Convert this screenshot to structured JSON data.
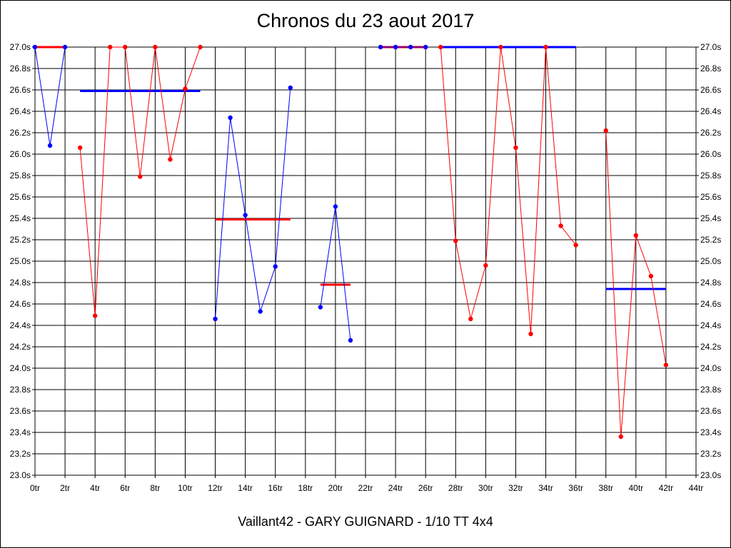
{
  "chart_data": {
    "type": "line",
    "title": "Chronos du 23 aout 2017",
    "subtitle": "Vaillant42 - GARY GUIGNARD - 1/10 TT 4x4",
    "x_ticks": [
      "0tr",
      "2tr",
      "4tr",
      "6tr",
      "8tr",
      "10tr",
      "12tr",
      "14tr",
      "16tr",
      "18tr",
      "20tr",
      "22tr",
      "24tr",
      "26tr",
      "28tr",
      "30tr",
      "32tr",
      "34tr",
      "36tr",
      "38tr",
      "40tr",
      "42tr",
      "44tr"
    ],
    "y_ticks": [
      "23.0s",
      "23.2s",
      "23.4s",
      "23.6s",
      "23.8s",
      "24.0s",
      "24.2s",
      "24.4s",
      "24.6s",
      "24.8s",
      "25.0s",
      "25.2s",
      "25.4s",
      "25.6s",
      "25.8s",
      "26.0s",
      "26.2s",
      "26.4s",
      "26.6s",
      "26.8s",
      "27.0s"
    ],
    "xlim": [
      0,
      44
    ],
    "ylim": [
      23.0,
      27.0
    ],
    "grid": true,
    "colors": {
      "blue": "#0000ff",
      "red": "#ff0000",
      "grid": "#000000"
    },
    "series": [
      {
        "color": "#0000ff",
        "points": [
          [
            0,
            27.0
          ],
          [
            1,
            26.08
          ],
          [
            2,
            27.0
          ]
        ]
      },
      {
        "color": "#ff0000",
        "points": [
          [
            3,
            26.06
          ],
          [
            4,
            24.49
          ],
          [
            5,
            27.0
          ],
          [
            6,
            27.0
          ],
          [
            7,
            25.79
          ],
          [
            8,
            27.0
          ],
          [
            9,
            25.95
          ],
          [
            10,
            26.61
          ],
          [
            11,
            27.0
          ]
        ]
      },
      {
        "color": "#0000ff",
        "points": [
          [
            12,
            24.46
          ],
          [
            13,
            26.34
          ],
          [
            14,
            25.43
          ],
          [
            15,
            24.53
          ],
          [
            16,
            24.95
          ],
          [
            17,
            26.62
          ]
        ]
      },
      {
        "color": "#0000ff",
        "points": [
          [
            19,
            24.57
          ],
          [
            20,
            25.51
          ],
          [
            21,
            24.26
          ]
        ]
      },
      {
        "color": "#0000ff",
        "points": [
          [
            23,
            27.0
          ],
          [
            24,
            27.0
          ],
          [
            25,
            27.0
          ],
          [
            26,
            27.0
          ]
        ]
      },
      {
        "color": "#ff0000",
        "points": [
          [
            27,
            27.0
          ],
          [
            28,
            25.19
          ],
          [
            29,
            24.46
          ],
          [
            30,
            24.96
          ],
          [
            31,
            27.0
          ],
          [
            32,
            26.06
          ],
          [
            33,
            24.32
          ],
          [
            34,
            27.0
          ],
          [
            35,
            25.33
          ],
          [
            36,
            25.15
          ]
        ]
      },
      {
        "color": "#ff0000",
        "points": [
          [
            38,
            26.22
          ],
          [
            39,
            23.36
          ],
          [
            40,
            25.24
          ],
          [
            41,
            24.86
          ],
          [
            42,
            24.03
          ]
        ]
      }
    ],
    "average_lines": [
      {
        "color": "#ff0000",
        "x": [
          0,
          2
        ],
        "y": 27.0
      },
      {
        "color": "#0000ff",
        "x": [
          3,
          11
        ],
        "y": 26.59
      },
      {
        "color": "#ff0000",
        "x": [
          12,
          17
        ],
        "y": 25.39
      },
      {
        "color": "#ff0000",
        "x": [
          19,
          21
        ],
        "y": 24.78
      },
      {
        "color": "#ff0000",
        "x": [
          23,
          26
        ],
        "y": 27.0
      },
      {
        "color": "#0000ff",
        "x": [
          27,
          36
        ],
        "y": 27.0
      },
      {
        "color": "#0000ff",
        "x": [
          38,
          42
        ],
        "y": 24.74
      }
    ]
  }
}
